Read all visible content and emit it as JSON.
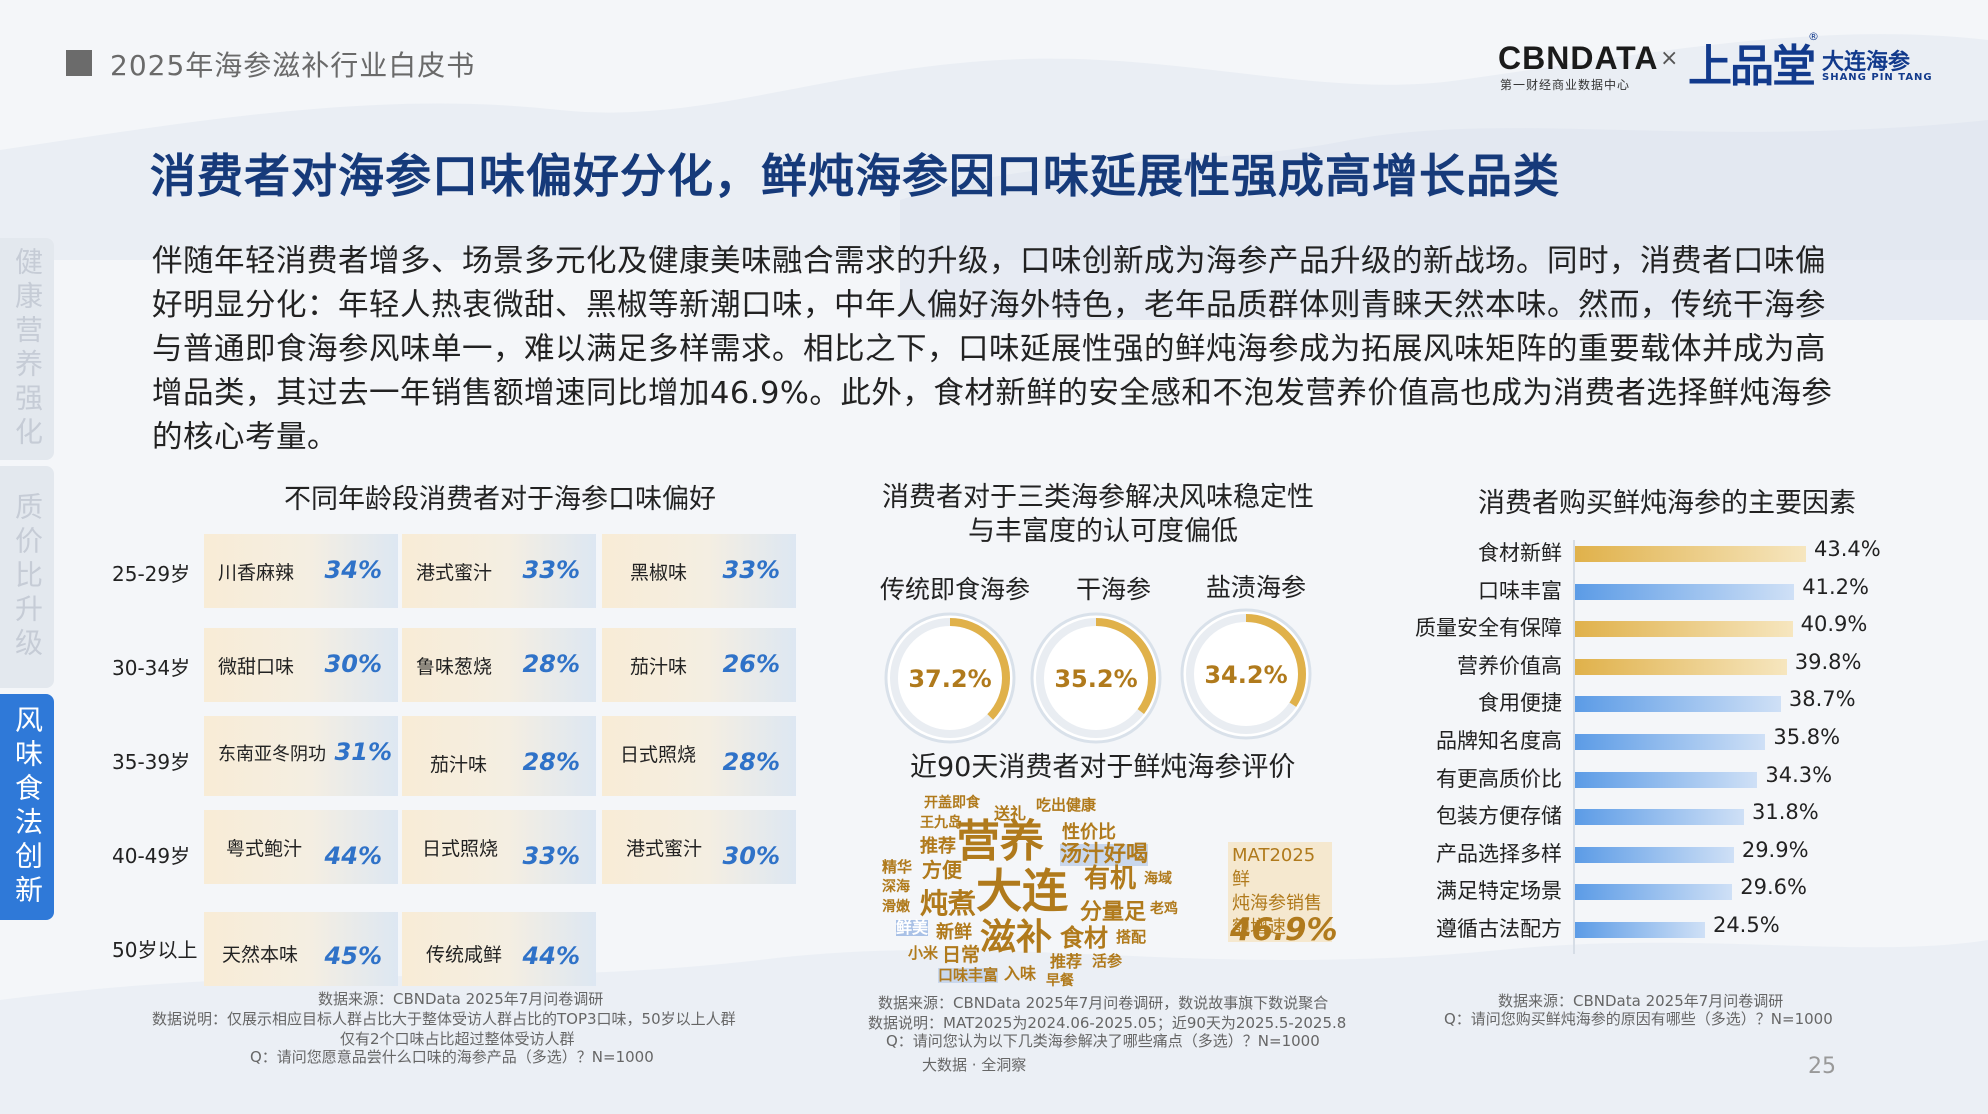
{
  "header": {
    "report_title": "2025年海参滋补行业白皮书",
    "cbn_logo": "CBNDATA",
    "cbn_sub": "第一财经商业数据中心",
    "times": "×",
    "partner_logo": "上品堂",
    "partner_name": "大连海参",
    "partner_en": "SHANG PIN TANG",
    "reg_mark": "®"
  },
  "slide": {
    "title": "消费者对海参口味偏好分化，鲜炖海参因口味延展性强成高增长品类",
    "body": "伴随年轻消费者增多、场景多元化及健康美味融合需求的升级，口味创新成为海参产品升级的新战场。同时，消费者口味偏好明显分化：年轻人热衷微甜、黑椒等新潮口味，中年人偏好海外特色，老年品质群体则青睐天然本味。然而，传统干海参与普通即食海参风味单一，难以满足多样需求。相比之下，口味延展性强的鲜炖海参成为拓展风味矩阵的重要载体并成为高增品类，其过去一年销售额增速同比增加46.9%。此外，食材新鲜的安全感和不泡发营养价值高也成为消费者选择鲜炖海参的核心考量。",
    "page_number": "25"
  },
  "side_tabs": [
    {
      "label": "健康营养强化",
      "active": false
    },
    {
      "label": "质价比升级",
      "active": false
    },
    {
      "label": "风味食法创新",
      "active": true
    }
  ],
  "colors": {
    "accent_blue": "#2f79d8",
    "gold": "#e0b14a",
    "bar_blue": "#5b9be6",
    "title_navy": "#163a7a"
  },
  "chart_data": [
    {
      "type": "table",
      "title": "不同年龄段消费者对于海参口味偏好",
      "rows": [
        {
          "age": "25-29岁",
          "items": [
            {
              "flavor": "川香麻辣",
              "pct": "34%"
            },
            {
              "flavor": "港式蜜汁",
              "pct": "33%"
            },
            {
              "flavor": "黑椒味",
              "pct": "33%"
            }
          ]
        },
        {
          "age": "30-34岁",
          "items": [
            {
              "flavor": "微甜口味",
              "pct": "30%"
            },
            {
              "flavor": "鲁味葱烧",
              "pct": "28%"
            },
            {
              "flavor": "茄汁味",
              "pct": "26%"
            }
          ]
        },
        {
          "age": "35-39岁",
          "items": [
            {
              "flavor": "东南亚冬阴功",
              "pct": "31%"
            },
            {
              "flavor": "茄汁味",
              "pct": "28%"
            },
            {
              "flavor": "日式照烧",
              "pct": "28%"
            }
          ]
        },
        {
          "age": "40-49岁",
          "items": [
            {
              "flavor": "粤式鲍汁",
              "pct": "44%"
            },
            {
              "flavor": "日式照烧",
              "pct": "33%"
            },
            {
              "flavor": "港式蜜汁",
              "pct": "30%"
            }
          ]
        },
        {
          "age": "50岁以上",
          "items": [
            {
              "flavor": "天然本味",
              "pct": "45%"
            },
            {
              "flavor": "传统咸鲜",
              "pct": "44%"
            }
          ]
        }
      ],
      "notes": [
        "数据来源：CBNData 2025年7月问卷调研",
        "数据说明：仅展示相应目标人群占比大于整体受访人群占比的TOP3口味，50岁以上人群",
        "仅有2个口味占比超过整体受访人群",
        "Q：请问您愿意品尝什么口味的海参产品（多选）？N=1000"
      ]
    },
    {
      "type": "pie",
      "title": "消费者对于三类海参解决风味稳定性与丰富度的认可度偏低",
      "title_line1": "消费者对于三类海参解决风味稳定性",
      "title_line2": "与丰富度的认可度偏低",
      "categories": [
        "传统即食海参",
        "干海参",
        "盐渍海参"
      ],
      "values": [
        37.2,
        35.2,
        34.2
      ],
      "labels": [
        "37.2%",
        "35.2%",
        "34.2%"
      ],
      "wordcloud_title": "近90天消费者对于鲜炖海参评价",
      "wordcloud": [
        {
          "t": "开盖即食",
          "c": "#b07a1c"
        },
        {
          "t": "送礼",
          "c": "#b07a1c"
        },
        {
          "t": "吃出健康",
          "c": "#b07a1c"
        },
        {
          "t": "王九岛",
          "c": "#b07a1c"
        },
        {
          "t": "性价比",
          "c": "#b07a1c"
        },
        {
          "t": "营养",
          "c": "#b07a1c"
        },
        {
          "t": "推荐",
          "c": "#b07a1c"
        },
        {
          "t": "汤汁好喝",
          "c": "#b07a1c"
        },
        {
          "t": "精华",
          "c": "#b07a1c"
        },
        {
          "t": "方便",
          "c": "#b07a1c"
        },
        {
          "t": "深海",
          "c": "#b07a1c"
        },
        {
          "t": "大连",
          "c": "#b07a1c"
        },
        {
          "t": "有机",
          "c": "#b07a1c"
        },
        {
          "t": "海域",
          "c": "#b07a1c"
        },
        {
          "t": "滑嫩",
          "c": "#b07a1c"
        },
        {
          "t": "炖煮",
          "c": "#b07a1c"
        },
        {
          "t": "分量足",
          "c": "#b07a1c"
        },
        {
          "t": "老鸡",
          "c": "#b07a1c"
        },
        {
          "t": "鲜美",
          "c": "#ffffff"
        },
        {
          "t": "新鲜",
          "c": "#b07a1c"
        },
        {
          "t": "滋补",
          "c": "#b07a1c"
        },
        {
          "t": "食材",
          "c": "#b07a1c"
        },
        {
          "t": "搭配",
          "c": "#b07a1c"
        },
        {
          "t": "小米",
          "c": "#b07a1c"
        },
        {
          "t": "日常",
          "c": "#b07a1c"
        },
        {
          "t": "推荐",
          "c": "#b07a1c"
        },
        {
          "t": "活参",
          "c": "#b07a1c"
        },
        {
          "t": "口味丰富",
          "c": "#b07a1c"
        },
        {
          "t": "入味",
          "c": "#b07a1c"
        },
        {
          "t": "早餐",
          "c": "#b07a1c"
        }
      ],
      "mat_label": "MAT2025鲜炖海参销售额增速",
      "mat_line1": "MAT2025鲜",
      "mat_line2": "炖海参销售",
      "mat_line3": "额增速",
      "mat_value": "46.9%",
      "notes": [
        "数据来源：CBNData 2025年7月问卷调研，数说故事旗下数说聚合",
        "数据说明：MAT2025为2024.06-2025.05；近90天为2025.5-2025.8",
        "Q：请问您认为以下几类海参解决了哪些痛点（多选）？N=1000",
        "大数据 · 全洞察"
      ]
    },
    {
      "type": "bar",
      "title": "消费者购买鲜炖海参的主要因素",
      "categories": [
        "食材新鲜",
        "口味丰富",
        "质量安全有保障",
        "营养价值高",
        "食用便捷",
        "品牌知名度高",
        "有更高质价比",
        "包装方便存储",
        "产品选择多样",
        "满足特定场景",
        "遵循古法配方"
      ],
      "values": [
        43.4,
        41.2,
        40.9,
        39.8,
        38.7,
        35.8,
        34.3,
        31.8,
        29.9,
        29.6,
        24.5
      ],
      "labels": [
        "43.4%",
        "41.2%",
        "40.9%",
        "39.8%",
        "38.7%",
        "35.8%",
        "34.3%",
        "31.8%",
        "29.9%",
        "29.6%",
        "24.5%"
      ],
      "series_colors": [
        "#e0b14a",
        "#5b9be6",
        "#e0b14a",
        "#e0b14a",
        "#5b9be6",
        "#5b9be6",
        "#5b9be6",
        "#5b9be6",
        "#5b9be6",
        "#5b9be6",
        "#5b9be6"
      ],
      "xlim": [
        0,
        50
      ],
      "notes": [
        "数据来源：CBNData  2025年7月问卷调研",
        "Q：请问您购买鲜炖海参的原因有哪些（多选）？N=1000"
      ]
    }
  ]
}
